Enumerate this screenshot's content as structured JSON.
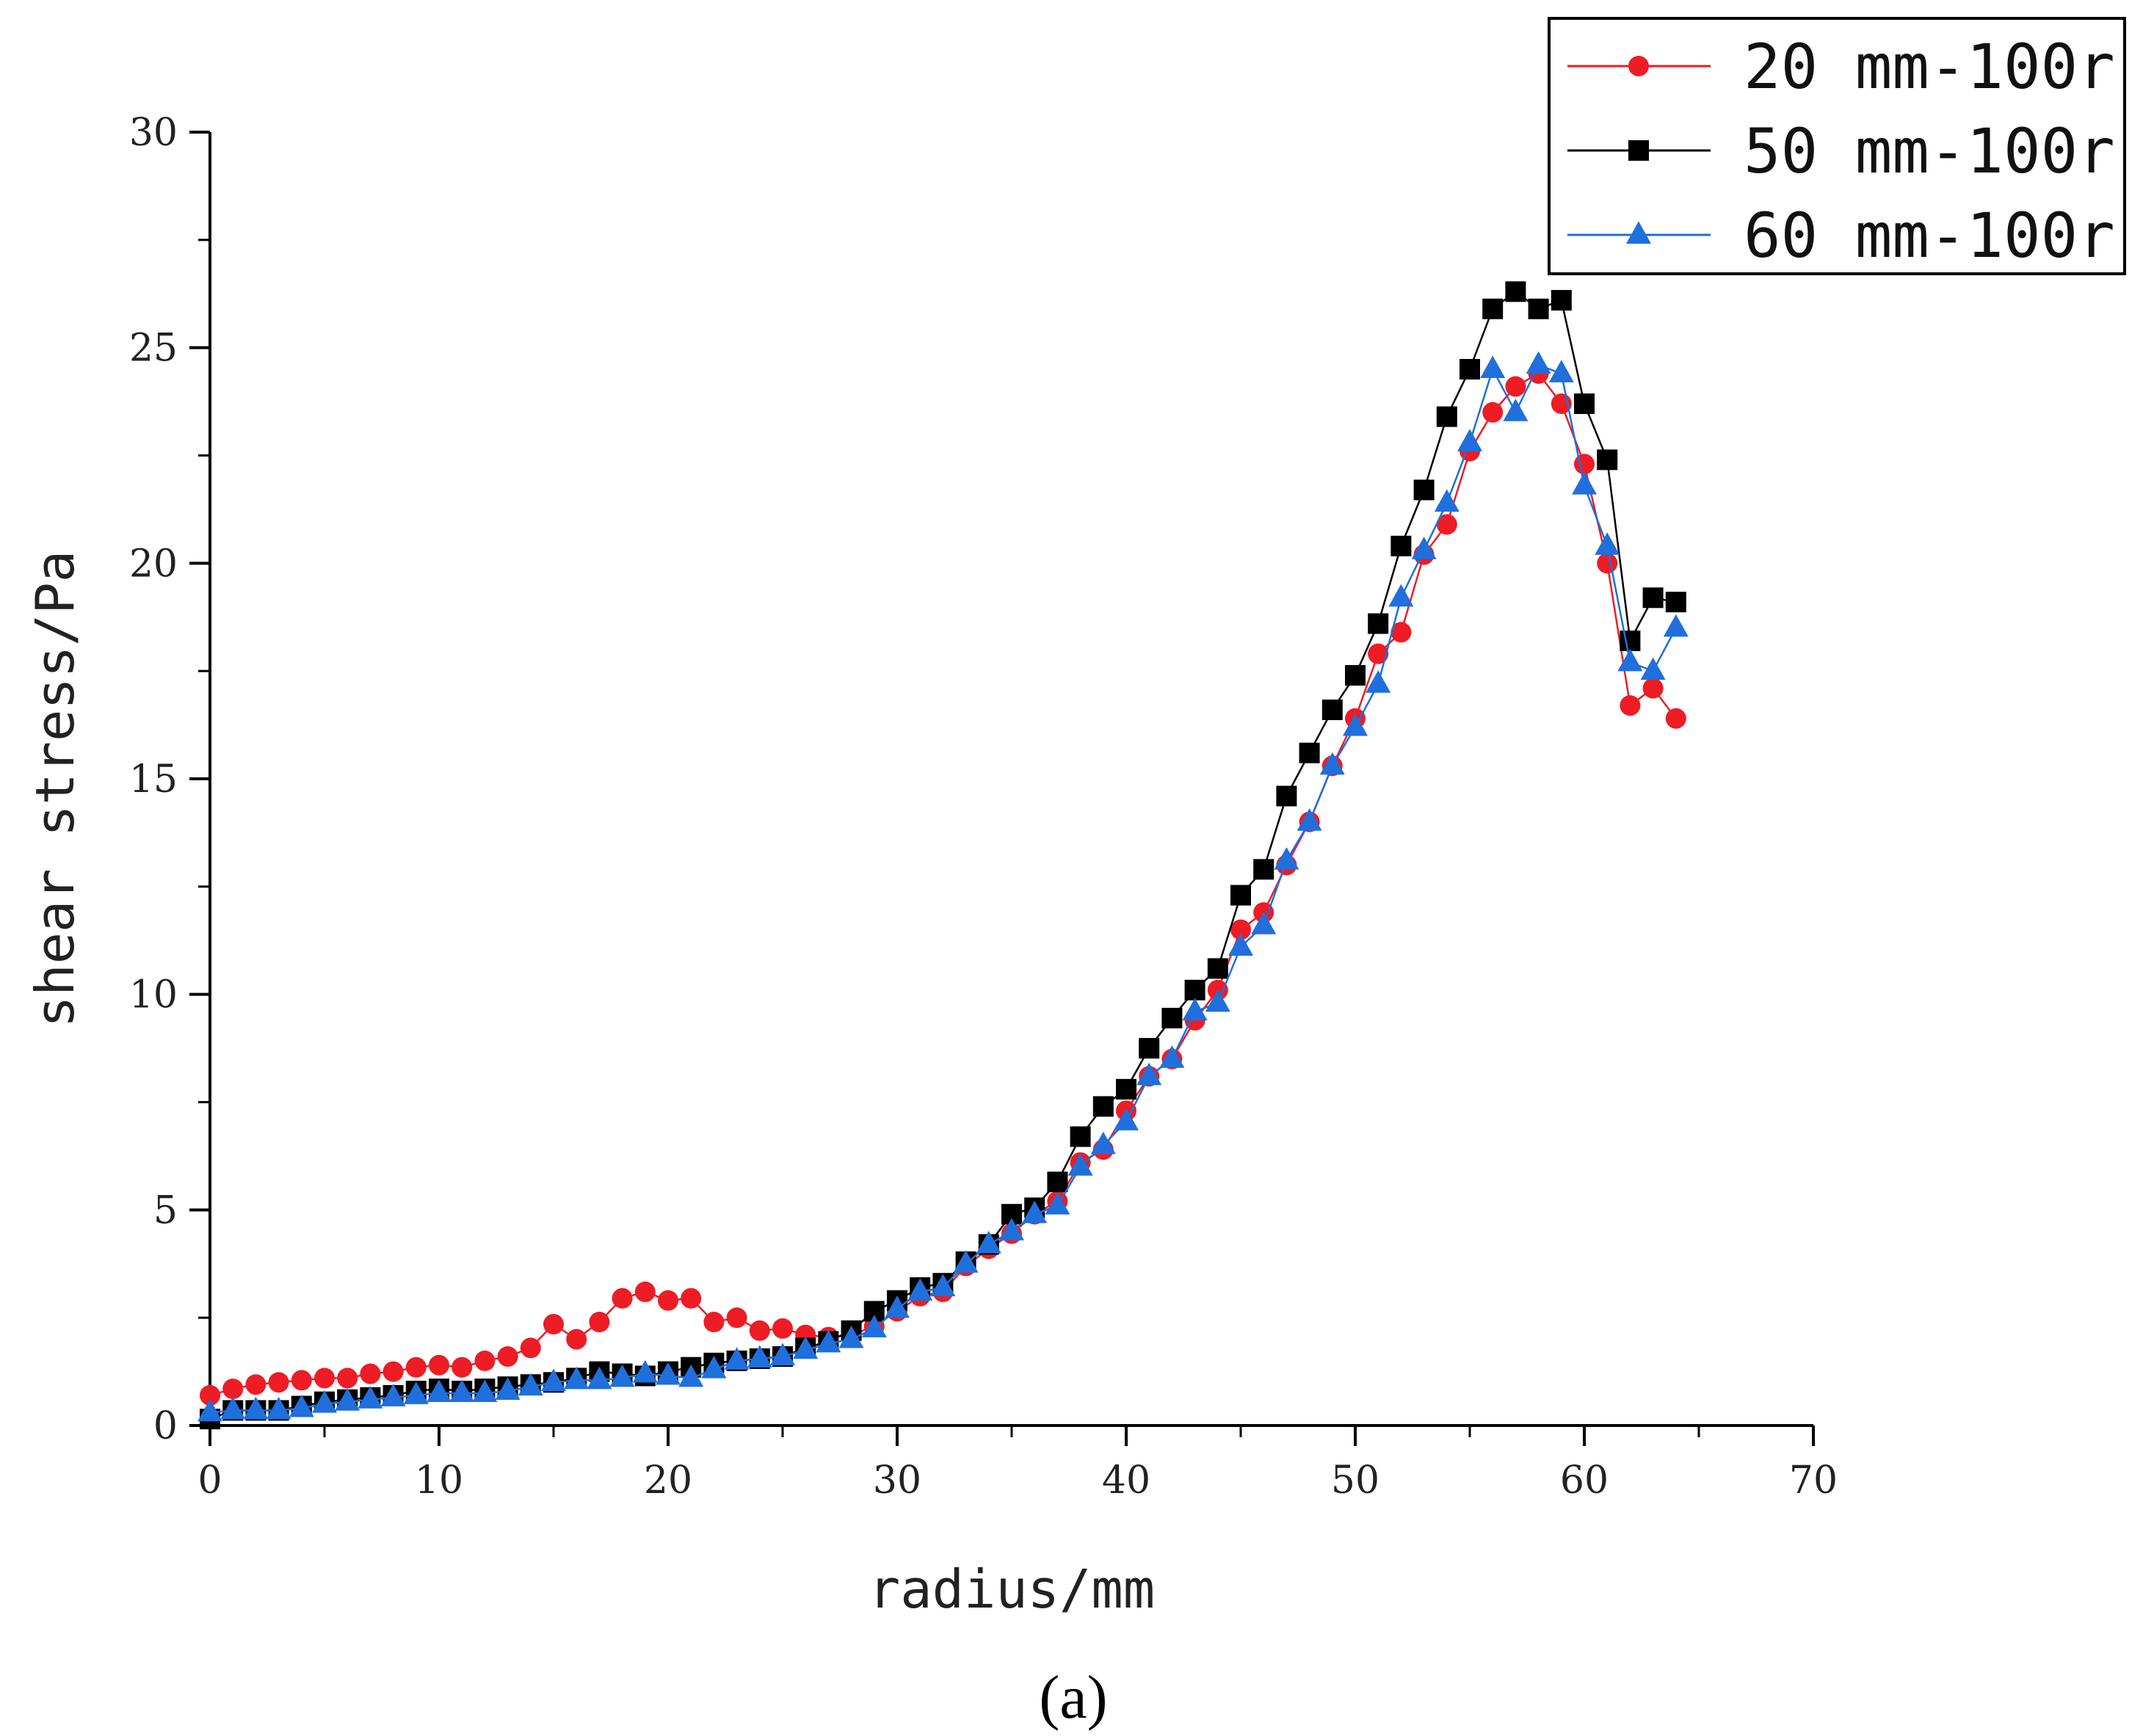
{
  "chart_data": {
    "type": "line",
    "xlabel": "radius/mm",
    "ylabel": "shear stress/Pa",
    "xlim": [
      0,
      70
    ],
    "ylim": [
      0,
      30
    ],
    "xticks": [
      0,
      10,
      20,
      30,
      40,
      50,
      60,
      70
    ],
    "yticks": [
      0,
      5,
      10,
      15,
      20,
      25,
      30
    ],
    "grid": false,
    "legend_position": "top-right",
    "caption": "(a)",
    "x": [
      0,
      1,
      2,
      3,
      4,
      5,
      6,
      7,
      8,
      9,
      10,
      11,
      12,
      13,
      14,
      15,
      16,
      17,
      18,
      19,
      20,
      21,
      22,
      23,
      24,
      25,
      26,
      27,
      28,
      29,
      30,
      31,
      32,
      33,
      34,
      35,
      36,
      37,
      38,
      39,
      40,
      41,
      42,
      43,
      44,
      45,
      46,
      47,
      48,
      49,
      50,
      51,
      52,
      53,
      54,
      55,
      56,
      57,
      58,
      59,
      60,
      61,
      62,
      63,
      64
    ],
    "series": [
      {
        "name": "20 mm-100r",
        "color": "#ee1c24",
        "marker": "circle",
        "values": [
          0.7,
          0.85,
          0.95,
          1.0,
          1.05,
          1.1,
          1.1,
          1.2,
          1.25,
          1.35,
          1.4,
          1.35,
          1.5,
          1.6,
          1.8,
          2.35,
          2.0,
          2.4,
          2.95,
          3.1,
          2.9,
          2.95,
          2.4,
          2.5,
          2.2,
          2.25,
          2.1,
          2.05,
          2.1,
          2.3,
          2.65,
          3.0,
          3.1,
          3.7,
          4.1,
          4.45,
          4.9,
          5.2,
          6.1,
          6.4,
          7.3,
          8.1,
          8.5,
          9.4,
          10.1,
          11.5,
          11.9,
          13.0,
          14.0,
          15.3,
          16.4,
          17.9,
          18.4,
          20.2,
          20.9,
          22.6,
          23.5,
          24.1,
          24.4,
          23.7,
          22.3,
          20.0,
          16.7,
          17.1,
          16.4
        ]
      },
      {
        "name": "50 mm-100r",
        "color": "#000000",
        "marker": "square",
        "values": [
          0.15,
          0.35,
          0.35,
          0.35,
          0.45,
          0.55,
          0.6,
          0.65,
          0.7,
          0.8,
          0.85,
          0.8,
          0.85,
          0.9,
          0.95,
          1.0,
          1.1,
          1.25,
          1.2,
          1.15,
          1.25,
          1.35,
          1.45,
          1.5,
          1.55,
          1.6,
          1.8,
          1.95,
          2.2,
          2.65,
          2.9,
          3.2,
          3.3,
          3.8,
          4.2,
          4.9,
          5.05,
          5.65,
          6.7,
          7.4,
          7.8,
          8.75,
          9.45,
          10.1,
          10.6,
          12.3,
          12.9,
          14.6,
          15.6,
          16.6,
          17.4,
          18.6,
          20.4,
          21.7,
          23.4,
          24.5,
          25.9,
          26.3,
          25.9,
          26.1,
          23.7,
          22.4,
          18.2,
          19.2,
          19.1
        ]
      },
      {
        "name": "60 mm-100r",
        "color": "#1f6fdc",
        "marker": "triangle",
        "values": [
          0.3,
          0.35,
          0.35,
          0.35,
          0.4,
          0.5,
          0.55,
          0.6,
          0.65,
          0.7,
          0.75,
          0.75,
          0.75,
          0.8,
          0.9,
          1.0,
          1.05,
          1.05,
          1.1,
          1.2,
          1.15,
          1.1,
          1.3,
          1.5,
          1.55,
          1.6,
          1.75,
          1.9,
          2.0,
          2.25,
          2.7,
          3.1,
          3.2,
          3.75,
          4.2,
          4.5,
          4.9,
          5.1,
          6.0,
          6.5,
          7.05,
          8.1,
          8.5,
          9.6,
          9.8,
          11.1,
          11.6,
          13.1,
          14.0,
          15.3,
          16.2,
          17.2,
          19.2,
          20.3,
          21.4,
          22.8,
          24.5,
          23.5,
          24.6,
          24.4,
          21.8,
          20.4,
          17.7,
          17.5,
          18.5
        ]
      }
    ]
  }
}
